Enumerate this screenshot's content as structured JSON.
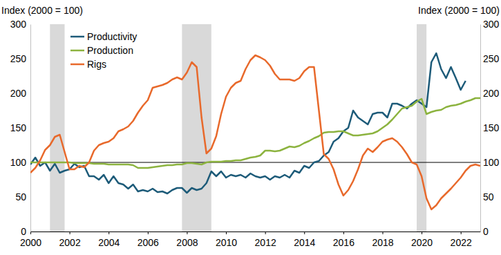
{
  "chart_data": {
    "type": "line",
    "y_label": "Index (2000 = 100)",
    "y2_label": "Index (2000 = 100)",
    "legend": "upper left",
    "grid": false,
    "xlim": [
      2000,
      2023
    ],
    "xticks": [
      2000,
      2002,
      2004,
      2006,
      2008,
      2010,
      2012,
      2014,
      2016,
      2018,
      2020,
      2022
    ],
    "ylim": [
      0,
      300
    ],
    "yticks": [
      0,
      50,
      100,
      150,
      200,
      250,
      300
    ],
    "y2lim": [
      0,
      300
    ],
    "y2ticks": [
      0,
      50,
      100,
      150,
      200,
      250,
      300
    ],
    "reference_line": 100,
    "bands": [
      {
        "x0": 2001.0,
        "x1": 2001.75
      },
      {
        "x0": 2007.75,
        "x1": 2009.25
      },
      {
        "x0": 2019.75,
        "x1": 2020.25
      }
    ],
    "x": [
      2000,
      2000.25,
      2000.5,
      2000.75,
      2001,
      2001.25,
      2001.5,
      2001.75,
      2002,
      2002.25,
      2002.5,
      2002.75,
      2003,
      2003.25,
      2003.5,
      2003.75,
      2004,
      2004.25,
      2004.5,
      2004.75,
      2005,
      2005.25,
      2005.5,
      2005.75,
      2006,
      2006.25,
      2006.5,
      2006.75,
      2007,
      2007.25,
      2007.5,
      2007.75,
      2008,
      2008.25,
      2008.5,
      2008.75,
      2009,
      2009.25,
      2009.5,
      2009.75,
      2010,
      2010.25,
      2010.5,
      2010.75,
      2011,
      2011.25,
      2011.5,
      2011.75,
      2012,
      2012.25,
      2012.5,
      2012.75,
      2013,
      2013.25,
      2013.5,
      2013.75,
      2014,
      2014.25,
      2014.5,
      2014.75,
      2015,
      2015.25,
      2015.5,
      2015.75,
      2016,
      2016.25,
      2016.5,
      2016.75,
      2017,
      2017.25,
      2017.5,
      2017.75,
      2018,
      2018.25,
      2018.5,
      2018.75,
      2019,
      2019.25,
      2019.5,
      2019.75,
      2020,
      2020.25,
      2020.5,
      2020.75,
      2021,
      2021.25,
      2021.5,
      2021.75,
      2022,
      2022.25,
      2022.5,
      2022.75,
      2023
    ],
    "series": [
      {
        "name": "Productivity",
        "color": "#1d5b79",
        "values": [
          97,
          107,
          95,
          100,
          88,
          98,
          85,
          88,
          90,
          98,
          93,
          95,
          80,
          80,
          75,
          82,
          70,
          80,
          70,
          68,
          62,
          68,
          58,
          60,
          58,
          62,
          57,
          58,
          55,
          60,
          63,
          63,
          56,
          63,
          60,
          62,
          70,
          87,
          80,
          87,
          78,
          82,
          80,
          82,
          78,
          84,
          80,
          78,
          80,
          75,
          80,
          78,
          82,
          78,
          88,
          85,
          95,
          92,
          100,
          102,
          110,
          115,
          130,
          135,
          145,
          150,
          175,
          165,
          160,
          155,
          170,
          172,
          172,
          165,
          185,
          185,
          182,
          178,
          185,
          190,
          185,
          180,
          245,
          258,
          235,
          222,
          238,
          222,
          205,
          218,
          null,
          null,
          null
        ]
      },
      {
        "name": "Production",
        "color": "#8cb33f",
        "values": [
          100,
          100,
          100,
          100,
          100,
          100,
          100,
          100,
          100,
          99,
          99,
          99,
          99,
          98,
          98,
          98,
          97,
          97,
          97,
          97,
          97,
          96,
          92,
          92,
          92,
          93,
          94,
          95,
          96,
          96,
          97,
          97,
          99,
          99,
          98,
          97,
          100,
          101,
          101,
          101,
          102,
          102,
          103,
          103,
          105,
          107,
          108,
          110,
          117,
          117,
          116,
          117,
          120,
          123,
          122,
          124,
          128,
          131,
          135,
          138,
          143,
          144,
          144,
          145,
          145,
          142,
          139,
          139,
          140,
          141,
          142,
          145,
          150,
          155,
          162,
          170,
          178,
          180,
          182,
          188,
          192,
          170,
          173,
          175,
          176,
          180,
          182,
          183,
          185,
          188,
          190,
          193,
          193
        ]
      },
      {
        "name": "Rigs",
        "color": "#e8692b",
        "values": [
          85,
          92,
          103,
          118,
          125,
          137,
          140,
          115,
          90,
          90,
          95,
          93,
          100,
          117,
          125,
          128,
          130,
          135,
          145,
          148,
          152,
          160,
          172,
          182,
          190,
          208,
          210,
          212,
          215,
          220,
          223,
          220,
          230,
          245,
          238,
          165,
          113,
          120,
          138,
          170,
          195,
          208,
          215,
          218,
          235,
          248,
          255,
          252,
          248,
          240,
          228,
          220,
          220,
          220,
          218,
          222,
          232,
          238,
          238,
          175,
          112,
          105,
          90,
          68,
          52,
          60,
          73,
          90,
          110,
          120,
          115,
          122,
          130,
          133,
          135,
          130,
          122,
          112,
          100,
          97,
          80,
          48,
          32,
          38,
          48,
          55,
          62,
          70,
          78,
          88,
          95,
          97,
          95
        ]
      }
    ]
  }
}
